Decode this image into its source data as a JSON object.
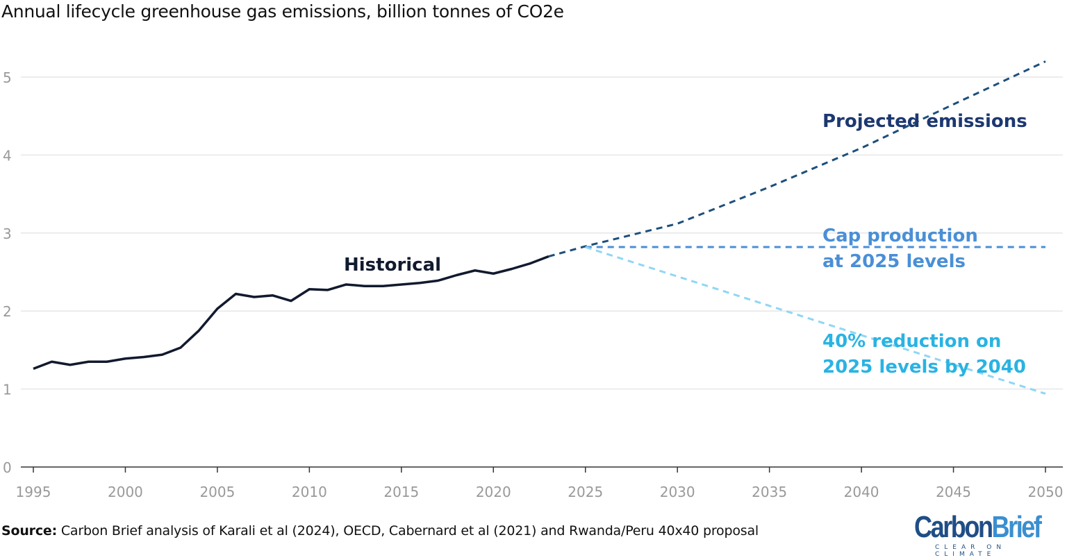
{
  "chart_data": {
    "type": "line",
    "title": "Annual lifecycle greenhouse gas emissions, billion tonnes of CO2e",
    "xlabel": "",
    "ylabel": "",
    "xlim": [
      1995,
      2050
    ],
    "ylim": [
      0,
      5.3
    ],
    "x_ticks": [
      "1995",
      "2000",
      "2005",
      "2010",
      "2015",
      "2020",
      "2025",
      "2030",
      "2035",
      "2040",
      "2045",
      "2050"
    ],
    "y_ticks": [
      "0",
      "1",
      "2",
      "3",
      "4",
      "5"
    ],
    "grid": "horizontal",
    "series": [
      {
        "name": "Historical",
        "color": "#111a2e",
        "style": "solid",
        "x": [
          1995,
          1996,
          1997,
          1998,
          1999,
          2000,
          2001,
          2002,
          2003,
          2004,
          2005,
          2006,
          2007,
          2008,
          2009,
          2010,
          2011,
          2012,
          2013,
          2014,
          2015,
          2016,
          2017,
          2018,
          2019,
          2020,
          2021,
          2022,
          2023
        ],
        "y": [
          1.26,
          1.35,
          1.31,
          1.35,
          1.35,
          1.39,
          1.41,
          1.44,
          1.53,
          1.75,
          2.03,
          2.22,
          2.18,
          2.2,
          2.13,
          2.28,
          2.27,
          2.34,
          2.32,
          2.32,
          2.34,
          2.36,
          2.39,
          2.46,
          2.52,
          2.48,
          2.54,
          2.61,
          2.7
        ]
      },
      {
        "name": "Projected emissions",
        "color": "#1d4f7c",
        "label_color": "#1c3870",
        "style": "dashed",
        "x": [
          2023,
          2025,
          2030,
          2035,
          2040,
          2045,
          2050
        ],
        "y": [
          2.7,
          2.83,
          3.12,
          3.59,
          4.09,
          4.65,
          5.2
        ]
      },
      {
        "name": "Cap production at 2025 levels",
        "label_lines": [
          "Cap production",
          "at 2025 levels"
        ],
        "color": "#4a8fd6",
        "label_color": "#4a8fd6",
        "style": "dashed",
        "x": [
          2025,
          2050
        ],
        "y": [
          2.82,
          2.82
        ]
      },
      {
        "name": "40% reduction on 2025 levels by 2040",
        "label_lines": [
          "40% reduction on",
          "2025 levels by 2040"
        ],
        "color": "#8fd6f5",
        "label_color": "#29b3e3",
        "style": "dashed",
        "x": [
          2025,
          2040,
          2050
        ],
        "y": [
          2.82,
          1.69,
          0.94
        ]
      }
    ]
  },
  "source": {
    "label": "Source:",
    "text": " Carbon Brief analysis of Karali et al (2024), OECD, Cabernard et al (2021) and Rwanda/Peru 40x40 proposal"
  },
  "logo": {
    "part1": "Carbon",
    "part2": "Brief",
    "tagline": "CLEAR ON CLIMATE"
  }
}
